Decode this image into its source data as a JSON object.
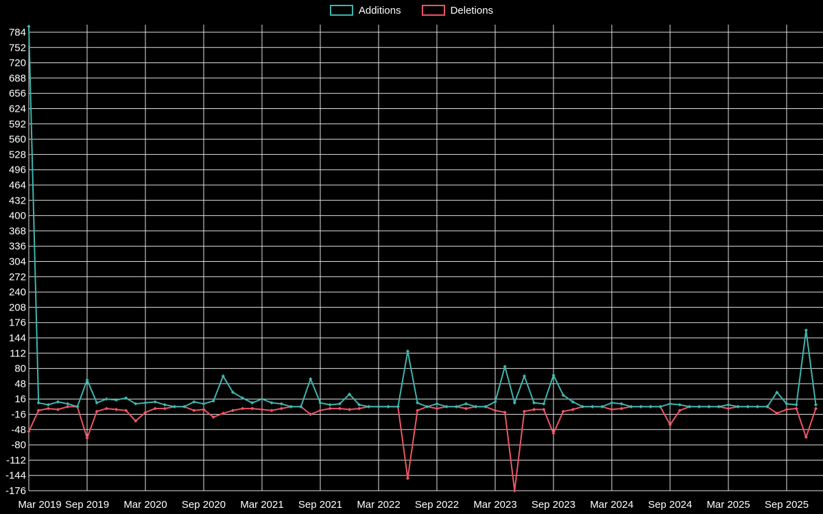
{
  "colors": {
    "background": "#000000",
    "grid": "#e2e2e2",
    "text": "#ffffff",
    "additions": "#3fb6ae",
    "deletions": "#ef5666"
  },
  "legend": {
    "items": [
      {
        "label": "Additions",
        "color": "#3fb6ae"
      },
      {
        "label": "Deletions",
        "color": "#ef5666"
      }
    ]
  },
  "chart_data": {
    "type": "line",
    "title": "",
    "xlabel": "",
    "ylabel": "",
    "legend_position": "top",
    "grid": true,
    "ylim": [
      -176,
      784
    ],
    "y_ticks": {
      "min": -176,
      "max": 784,
      "step": 32
    },
    "y_tick_labels": [
      784,
      752,
      720,
      688,
      656,
      624,
      592,
      560,
      528,
      496,
      464,
      432,
      400,
      368,
      336,
      304,
      272,
      240,
      208,
      176,
      144,
      112,
      80,
      48,
      16,
      -16,
      -48,
      -80,
      -112,
      -144,
      -176
    ],
    "x_tick_labels": [
      "Mar 2019",
      "Sep 2019",
      "Mar 2020",
      "Sep 2020",
      "Mar 2021",
      "Sep 2021",
      "Mar 2022",
      "Sep 2022",
      "Mar 2023",
      "Sep 2023",
      "Mar 2024",
      "Sep 2024",
      "Mar 2025",
      "Sep 2025"
    ],
    "x": [
      "2019-03",
      "2019-04",
      "2019-05",
      "2019-06",
      "2019-07",
      "2019-08",
      "2019-09",
      "2019-10",
      "2019-11",
      "2019-12",
      "2020-01",
      "2020-02",
      "2020-03",
      "2020-04",
      "2020-05",
      "2020-06",
      "2020-07",
      "2020-08",
      "2020-09",
      "2020-10",
      "2020-11",
      "2020-12",
      "2021-01",
      "2021-02",
      "2021-03",
      "2021-04",
      "2021-05",
      "2021-06",
      "2021-07",
      "2021-08",
      "2021-09",
      "2021-10",
      "2021-11",
      "2021-12",
      "2022-01",
      "2022-02",
      "2022-03",
      "2022-04",
      "2022-05",
      "2022-06",
      "2022-07",
      "2022-08",
      "2022-09",
      "2022-10",
      "2022-11",
      "2022-12",
      "2023-01",
      "2023-02",
      "2023-03",
      "2023-04",
      "2023-05",
      "2023-06",
      "2023-07",
      "2023-08",
      "2023-09",
      "2023-10",
      "2023-11",
      "2023-12",
      "2024-01",
      "2024-02",
      "2024-03",
      "2024-04",
      "2024-05",
      "2024-06",
      "2024-07",
      "2024-08",
      "2024-09",
      "2024-10",
      "2024-11",
      "2024-12",
      "2025-01",
      "2025-02",
      "2025-03",
      "2025-04",
      "2025-05",
      "2025-06",
      "2025-07",
      "2025-08",
      "2025-09",
      "2025-10",
      "2025-11",
      "2025-12"
    ],
    "series": [
      {
        "name": "Additions",
        "color": "#3fb6ae",
        "values": [
          796,
          8,
          4,
          10,
          6,
          0,
          56,
          8,
          16,
          14,
          18,
          6,
          8,
          10,
          4,
          0,
          0,
          10,
          6,
          12,
          64,
          30,
          18,
          8,
          16,
          8,
          6,
          0,
          0,
          58,
          8,
          4,
          6,
          26,
          4,
          0,
          0,
          0,
          0,
          116,
          8,
          0,
          6,
          0,
          0,
          6,
          0,
          0,
          10,
          84,
          8,
          64,
          8,
          6,
          66,
          24,
          10,
          0,
          0,
          0,
          8,
          6,
          0,
          0,
          0,
          0,
          6,
          4,
          0,
          0,
          0,
          0,
          4,
          0,
          0,
          0,
          0,
          30,
          6,
          4,
          160,
          4
        ]
      },
      {
        "name": "Deletions",
        "color": "#ef5666",
        "values": [
          -52,
          -8,
          -4,
          -6,
          0,
          0,
          -66,
          -10,
          -4,
          -6,
          -8,
          -30,
          -12,
          -4,
          -4,
          0,
          0,
          -8,
          -6,
          -22,
          -14,
          -8,
          -4,
          -4,
          -6,
          -8,
          -4,
          0,
          0,
          -16,
          -8,
          -4,
          -4,
          -6,
          -4,
          0,
          0,
          0,
          0,
          -150,
          -8,
          0,
          -4,
          0,
          0,
          -4,
          0,
          0,
          -8,
          -12,
          -176,
          -10,
          -6,
          -6,
          -56,
          -10,
          -6,
          0,
          0,
          0,
          -6,
          -4,
          0,
          0,
          0,
          0,
          -38,
          -8,
          0,
          0,
          0,
          0,
          -4,
          0,
          0,
          0,
          0,
          -14,
          -6,
          -4,
          -64,
          -4
        ]
      }
    ]
  }
}
